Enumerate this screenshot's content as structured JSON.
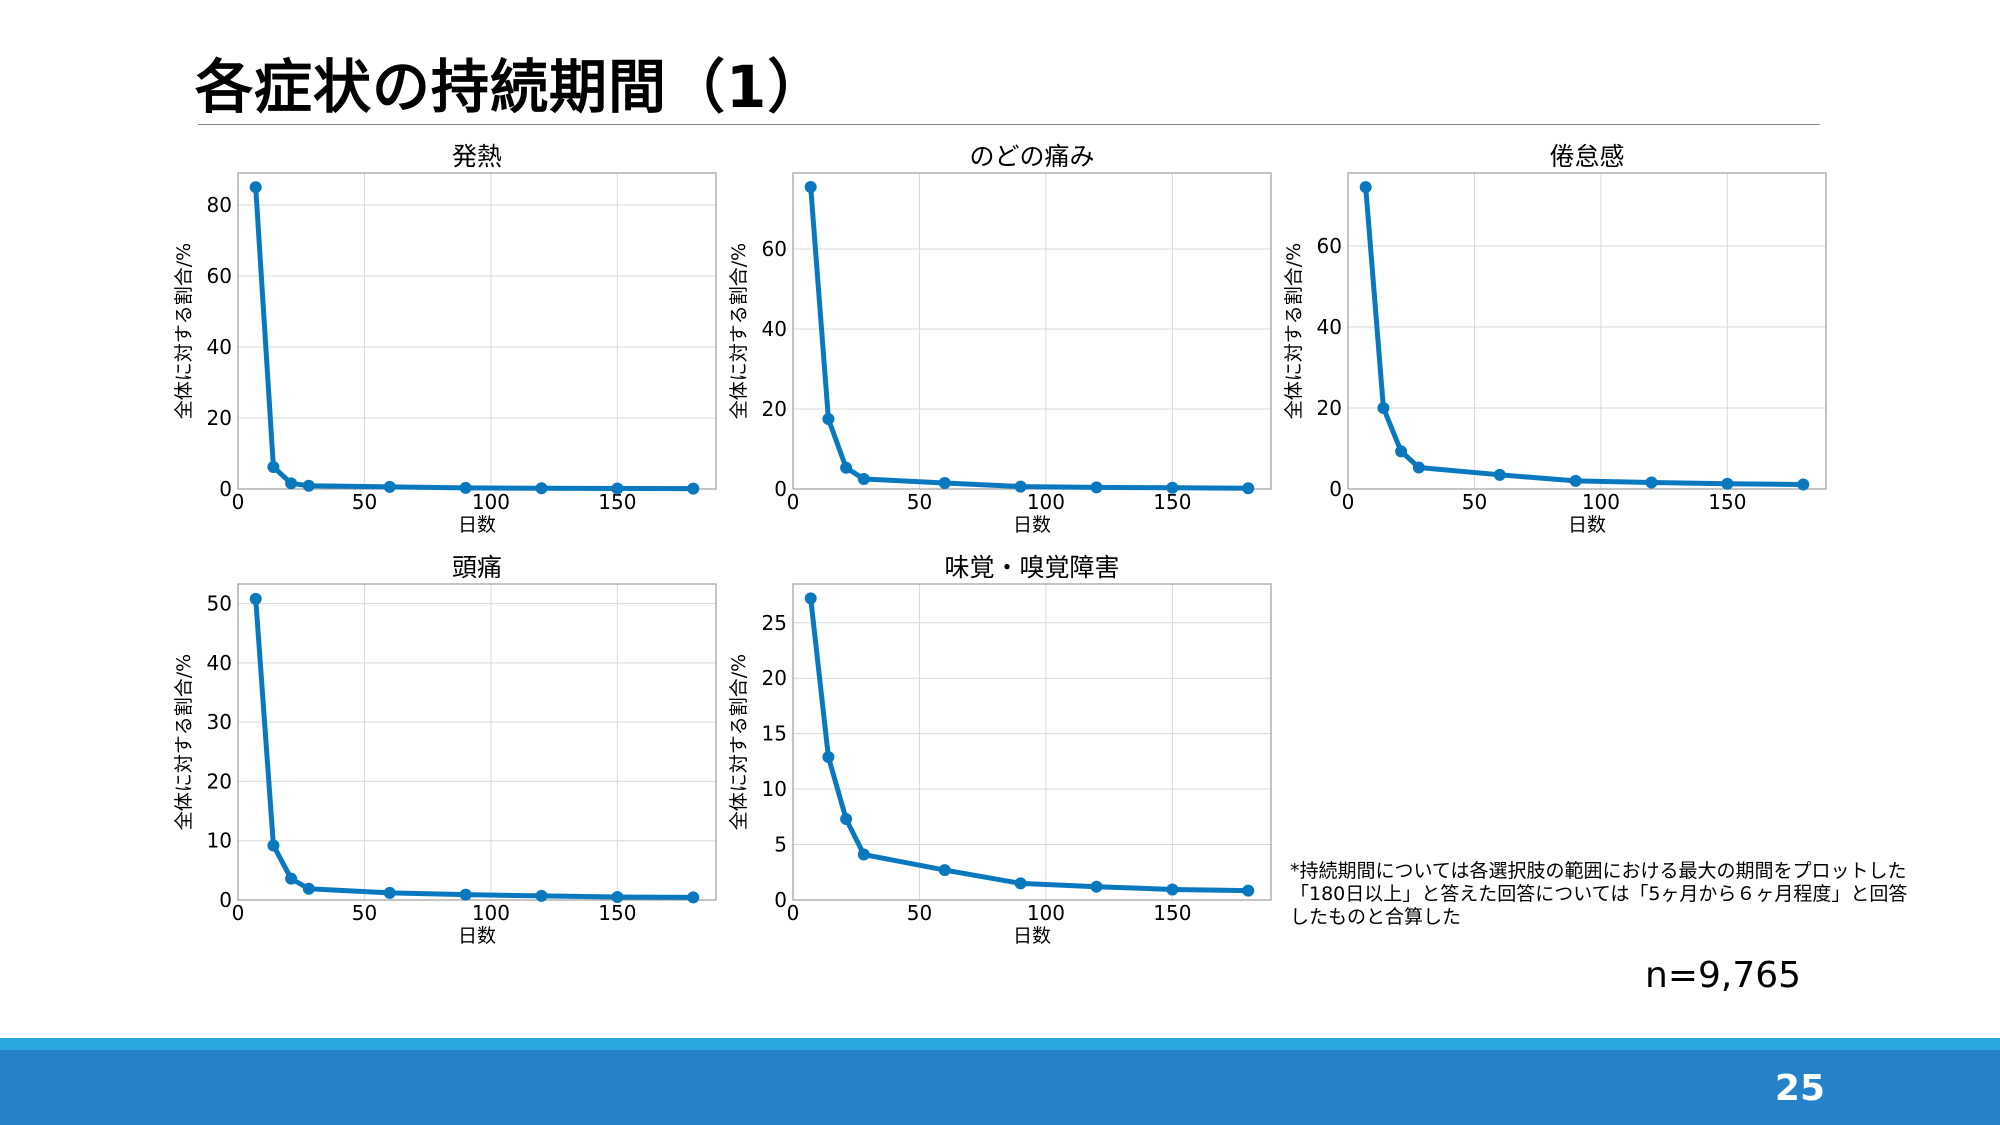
{
  "slide": {
    "title": "各症状の持続期間（1）",
    "footnote_lines": [
      "*持続期間については各選択肢の範囲における最大の期間をプロットした",
      "「180日以上」と答えた回答については「5ヶ月から６ヶ月程度」と回答",
      "したものと合算した"
    ],
    "sample_size": "n=9,765",
    "page_number": "25"
  },
  "colors": {
    "line": "#1f77b4",
    "line_drawn": "#0a78be",
    "grid": "#d9d9d9",
    "band": "#2682c8",
    "band_light": "#29a7df"
  },
  "chart_data": [
    {
      "type": "line",
      "title": "発熱",
      "xlabel": "日数",
      "ylabel": "全体に対する割合/%",
      "x": [
        7,
        14,
        21,
        28,
        60,
        90,
        120,
        150,
        180
      ],
      "y": [
        85,
        6.2,
        1.6,
        0.9,
        0.6,
        0.3,
        0.2,
        0.15,
        0.1
      ],
      "xlim": [
        0,
        189
      ],
      "ylim": [
        0,
        89
      ],
      "xticks": [
        0,
        50,
        100,
        150
      ],
      "yticks": [
        0,
        20,
        40,
        60,
        80
      ],
      "grid": true
    },
    {
      "type": "line",
      "title": "のどの痛み",
      "xlabel": "日数",
      "ylabel": "全体に対する割合/%",
      "x": [
        7,
        14,
        21,
        28,
        60,
        90,
        120,
        150,
        180
      ],
      "y": [
        75.5,
        17.5,
        5.3,
        2.5,
        1.5,
        0.6,
        0.4,
        0.3,
        0.2
      ],
      "xlim": [
        0,
        189
      ],
      "ylim": [
        0,
        79
      ],
      "xticks": [
        0,
        50,
        100,
        150
      ],
      "yticks": [
        0,
        20,
        40,
        60
      ],
      "grid": true
    },
    {
      "type": "line",
      "title": "倦怠感",
      "xlabel": "日数",
      "ylabel": "全体に対する割合/%",
      "x": [
        7,
        14,
        21,
        28,
        60,
        90,
        120,
        150,
        180
      ],
      "y": [
        74.5,
        20,
        9.3,
        5.3,
        3.5,
        2.0,
        1.6,
        1.3,
        1.1
      ],
      "xlim": [
        0,
        189
      ],
      "ylim": [
        0,
        78
      ],
      "xticks": [
        0,
        50,
        100,
        150
      ],
      "yticks": [
        0,
        20,
        40,
        60
      ],
      "grid": true
    },
    {
      "type": "line",
      "title": "頭痛",
      "xlabel": "日数",
      "ylabel": "全体に対する割合/%",
      "x": [
        7,
        14,
        21,
        28,
        60,
        90,
        120,
        150,
        180
      ],
      "y": [
        50.8,
        9.2,
        3.6,
        1.9,
        1.2,
        0.9,
        0.7,
        0.5,
        0.45
      ],
      "xlim": [
        0,
        189
      ],
      "ylim": [
        0,
        53.3
      ],
      "xticks": [
        0,
        50,
        100,
        150
      ],
      "yticks": [
        0,
        10,
        20,
        30,
        40,
        50
      ],
      "grid": true
    },
    {
      "type": "line",
      "title": "味覚・嗅覚障害",
      "xlabel": "日数",
      "ylabel": "全体に対する割合/%",
      "x": [
        7,
        14,
        21,
        28,
        60,
        90,
        120,
        150,
        180
      ],
      "y": [
        27.2,
        12.9,
        7.3,
        4.1,
        2.7,
        1.5,
        1.2,
        0.95,
        0.85
      ],
      "xlim": [
        0,
        189
      ],
      "ylim": [
        0,
        28.5
      ],
      "xticks": [
        0,
        50,
        100,
        150
      ],
      "yticks": [
        0,
        5,
        10,
        15,
        20,
        25
      ],
      "grid": true
    }
  ]
}
